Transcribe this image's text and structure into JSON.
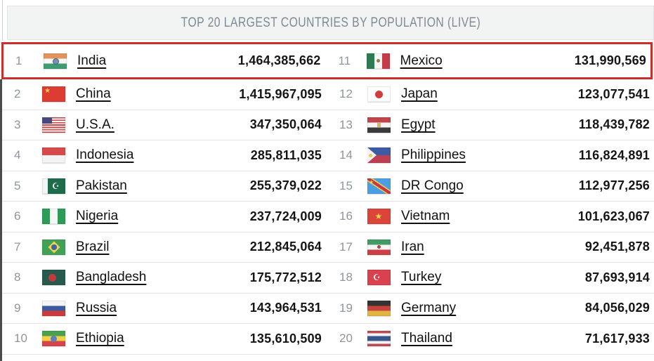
{
  "header": {
    "title": "TOP 20 LARGEST COUNTRIES BY POPULATION (LIVE)"
  },
  "annotation": {
    "type": "highlight-box",
    "color": "#cc2e2d",
    "target_row": 1
  },
  "colors": {
    "header_bg": "#f2f3f3",
    "header_text": "#7e8a94",
    "rank_text": "#8f959c",
    "row_separator": "#e4e4e4",
    "highlight_red": "#cc2e2d"
  },
  "rows": [
    {
      "left": {
        "rank": "1",
        "flag": "india-flag-icon",
        "country": "India",
        "population": "1,464,385,662"
      },
      "right": {
        "rank": "11",
        "flag": "mexico-flag-icon",
        "country": "Mexico",
        "population": "131,990,569"
      }
    },
    {
      "left": {
        "rank": "2",
        "flag": "china-flag-icon",
        "country": "China",
        "population": "1,415,967,095"
      },
      "right": {
        "rank": "12",
        "flag": "japan-flag-icon",
        "country": "Japan",
        "population": "123,077,541"
      }
    },
    {
      "left": {
        "rank": "3",
        "flag": "usa-flag-icon",
        "country": "U.S.A.",
        "population": "347,350,064"
      },
      "right": {
        "rank": "13",
        "flag": "egypt-flag-icon",
        "country": "Egypt",
        "population": "118,439,782"
      }
    },
    {
      "left": {
        "rank": "4",
        "flag": "indonesia-flag-icon",
        "country": "Indonesia",
        "population": "285,811,035"
      },
      "right": {
        "rank": "14",
        "flag": "philippines-flag-icon",
        "country": "Philippines",
        "population": "116,824,891"
      }
    },
    {
      "left": {
        "rank": "5",
        "flag": "pakistan-flag-icon",
        "country": "Pakistan",
        "population": "255,379,022"
      },
      "right": {
        "rank": "15",
        "flag": "dr-congo-flag-icon",
        "country": "DR Congo",
        "population": "112,977,256"
      }
    },
    {
      "left": {
        "rank": "6",
        "flag": "nigeria-flag-icon",
        "country": "Nigeria",
        "population": "237,724,009"
      },
      "right": {
        "rank": "16",
        "flag": "vietnam-flag-icon",
        "country": "Vietnam",
        "population": "101,623,067"
      }
    },
    {
      "left": {
        "rank": "7",
        "flag": "brazil-flag-icon",
        "country": "Brazil",
        "population": "212,845,064"
      },
      "right": {
        "rank": "17",
        "flag": "iran-flag-icon",
        "country": "Iran",
        "population": "92,451,878"
      }
    },
    {
      "left": {
        "rank": "8",
        "flag": "bangladesh-flag-icon",
        "country": "Bangladesh",
        "population": "175,772,512"
      },
      "right": {
        "rank": "18",
        "flag": "turkey-flag-icon",
        "country": "Turkey",
        "population": "87,693,914"
      }
    },
    {
      "left": {
        "rank": "9",
        "flag": "russia-flag-icon",
        "country": "Russia",
        "population": "143,964,531"
      },
      "right": {
        "rank": "19",
        "flag": "germany-flag-icon",
        "country": "Germany",
        "population": "84,056,029"
      }
    },
    {
      "left": {
        "rank": "10",
        "flag": "ethiopia-flag-icon",
        "country": "Ethiopia",
        "population": "135,610,509"
      },
      "right": {
        "rank": "20",
        "flag": "thailand-flag-icon",
        "country": "Thailand",
        "population": "71,617,933"
      }
    }
  ]
}
